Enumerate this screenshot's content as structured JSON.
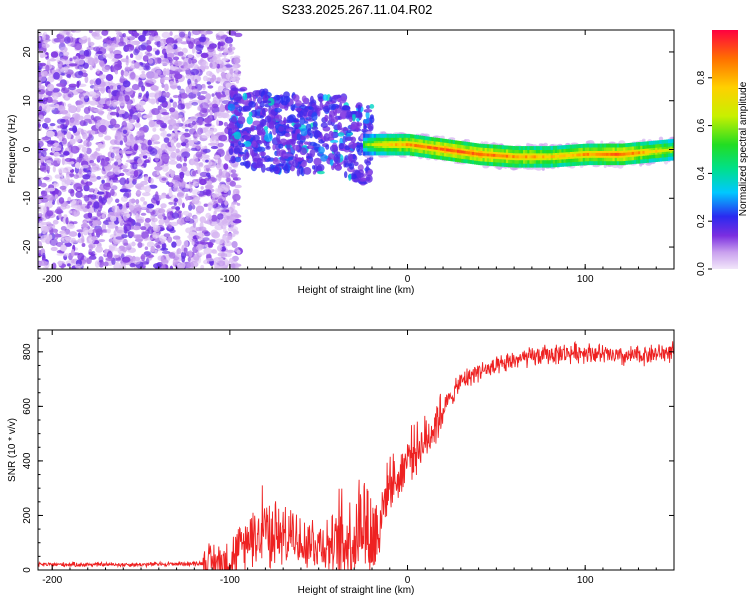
{
  "title": "S233.2025.267.11.04.R02",
  "chart_data": [
    {
      "type": "heatmap",
      "xlabel": "Height of straight line (km)",
      "ylabel": "Frequency (Hz)",
      "xlim": [
        -208,
        150
      ],
      "ylim": [
        -24.5,
        24.5
      ],
      "x_ticks": [
        -200,
        -100,
        0,
        100
      ],
      "y_ticks": [
        -20,
        -10,
        0,
        10,
        20
      ],
      "colorbar": {
        "label": "Normalized spectral amplitude",
        "range": [
          0,
          1
        ],
        "ticks": [
          0,
          0.2,
          0.4,
          0.6,
          0.8
        ]
      },
      "ridge": {
        "x": [
          -100,
          -80,
          -60,
          -40,
          -25,
          -15,
          0,
          20,
          40,
          60,
          80,
          100,
          120,
          150
        ],
        "freq": [
          5,
          4,
          3,
          3.5,
          1,
          1,
          1,
          0,
          -1,
          -1.5,
          -1.5,
          -1,
          -1,
          0
        ],
        "amplitude": [
          0.25,
          0.2,
          0.2,
          0.3,
          0.6,
          0.75,
          0.85,
          0.9,
          0.9,
          0.85,
          0.8,
          0.85,
          0.9,
          0.7
        ]
      }
    },
    {
      "type": "line",
      "xlabel": "Height of straight line (km)",
      "ylabel": "SNR (10 * v/v)",
      "xlim": [
        -208,
        150
      ],
      "ylim": [
        0,
        880
      ],
      "x_ticks": [
        -200,
        -100,
        0,
        100
      ],
      "y_ticks": [
        0,
        200,
        400,
        600,
        800
      ],
      "color": "#ee2222",
      "series": [
        {
          "name": "SNR",
          "x": [
            -208,
            -150,
            -110,
            -100,
            -90,
            -80,
            -70,
            -60,
            -50,
            -40,
            -30,
            -25,
            -20,
            -15,
            -10,
            -5,
            0,
            10,
            20,
            30,
            40,
            50,
            60,
            80,
            100,
            120,
            150
          ],
          "y": [
            20,
            20,
            25,
            40,
            100,
            150,
            120,
            110,
            100,
            90,
            120,
            200,
            100,
            200,
            330,
            330,
            420,
            470,
            590,
            690,
            730,
            740,
            770,
            790,
            800,
            780,
            800
          ]
        }
      ]
    }
  ]
}
